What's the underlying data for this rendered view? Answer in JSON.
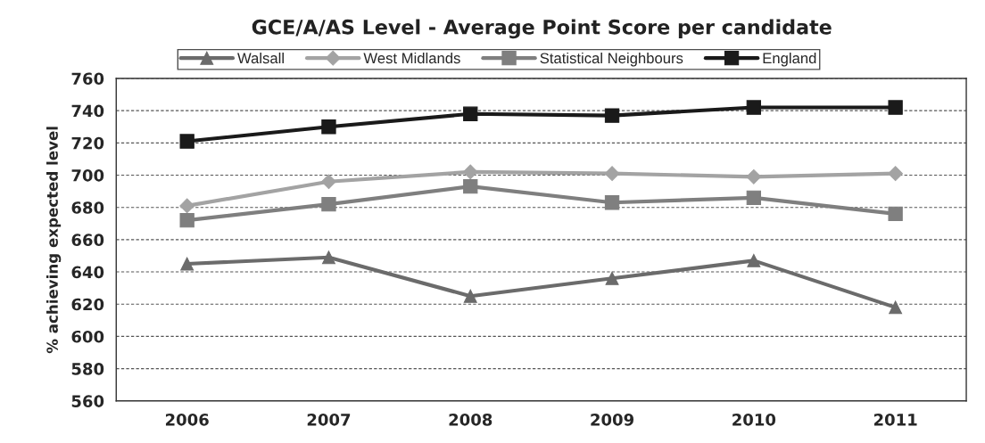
{
  "chart_data": {
    "type": "line",
    "title": "GCE/A/AS Level - Average Point Score per candidate",
    "ylabel": "% achieving expected level",
    "categories": [
      "2006",
      "2007",
      "2008",
      "2009",
      "2010",
      "2011"
    ],
    "series": [
      {
        "name": "Walsall",
        "color": "#6b6b6b",
        "marker": "triangle",
        "values": [
          645,
          649,
          625,
          636,
          647,
          618
        ]
      },
      {
        "name": "West Midlands",
        "color": "#a3a3a3",
        "marker": "diamond",
        "values": [
          681,
          696,
          702,
          701,
          699,
          701
        ]
      },
      {
        "name": "Statistical Neighbours",
        "color": "#7f7f7f",
        "marker": "square",
        "values": [
          672,
          682,
          693,
          683,
          686,
          676
        ]
      },
      {
        "name": "England",
        "color": "#1a1a1a",
        "marker": "square",
        "values": [
          721,
          730,
          738,
          737,
          742,
          742
        ]
      }
    ],
    "ylim": [
      560,
      760
    ],
    "yticks": [
      560,
      580,
      600,
      620,
      640,
      660,
      680,
      700,
      720,
      740,
      760
    ],
    "grid": "y",
    "legend": "top",
    "line_style": "solid"
  }
}
